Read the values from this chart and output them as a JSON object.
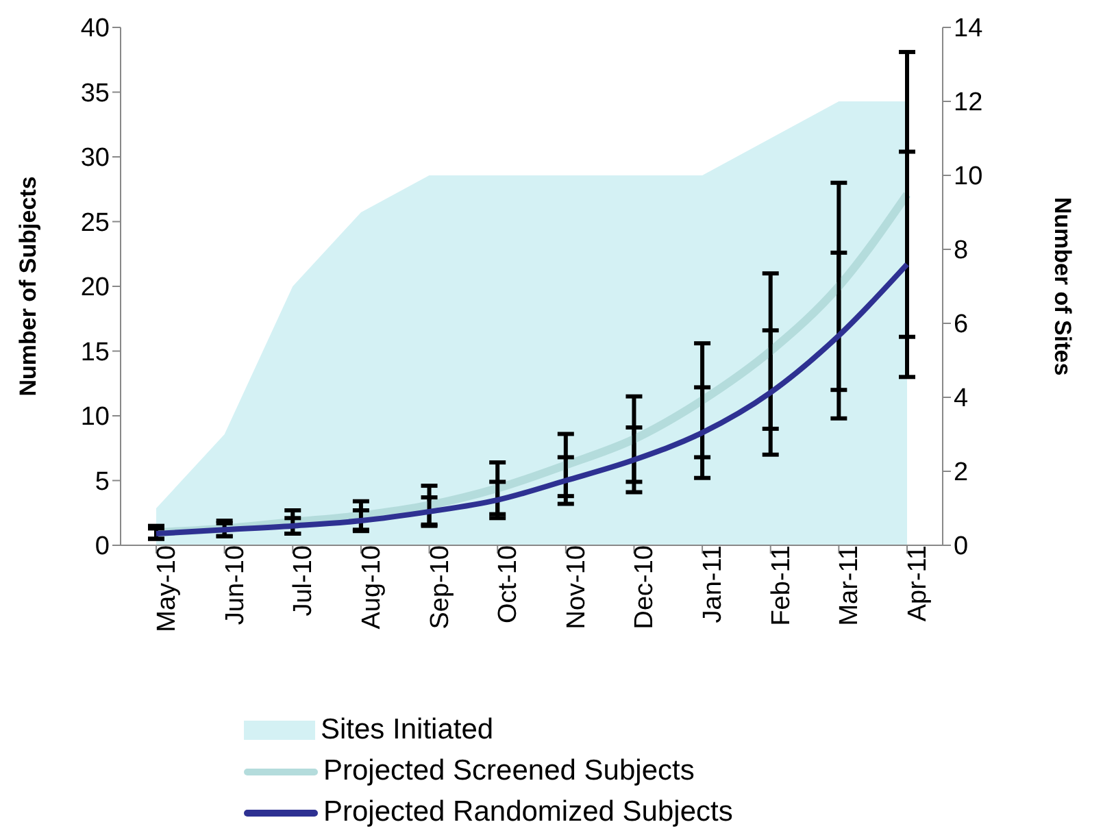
{
  "chart_data": {
    "type": "line",
    "xlabel": null,
    "ylabel": "Number of Subjects",
    "y2label": "Number of Sites",
    "categories": [
      "May-10",
      "Jun-10",
      "Jul-10",
      "Aug-10",
      "Sep-10",
      "Oct-10",
      "Nov-10",
      "Dec-10",
      "Jan-11",
      "Feb-11",
      "Mar-11",
      "Apr-11"
    ],
    "series": [
      {
        "name": "Sites Initiated",
        "type": "area",
        "axis": "y2",
        "color": "#d4f1f4",
        "values": [
          1,
          3,
          7,
          9,
          10,
          10,
          10,
          10,
          10,
          11,
          12,
          12
        ]
      },
      {
        "name": "Projected Screened Subjects",
        "color": "#b4dcdc",
        "values": [
          1,
          1.3,
          1.8,
          2.3,
          3.1,
          4.4,
          6.2,
          8.2,
          11.2,
          15,
          20,
          27.1
        ],
        "errors": [
          0.5,
          0.6,
          0.9,
          1.1,
          1.5,
          2,
          2.4,
          3.3,
          4.4,
          6,
          8,
          11
        ]
      },
      {
        "name": "Projected Randomized Subjects",
        "color": "#2e3192",
        "values": [
          0.9,
          1.2,
          1.5,
          1.9,
          2.6,
          3.5,
          5,
          6.6,
          8.7,
          11.8,
          16.2,
          21.7
        ],
        "errors": [
          0.4,
          0.5,
          0.6,
          0.8,
          1.1,
          1.4,
          1.8,
          2.5,
          3.5,
          4.8,
          6.4,
          8.7
        ]
      }
    ],
    "ylim": [
      0,
      40
    ],
    "yticks": [
      0,
      5,
      10,
      15,
      20,
      25,
      30,
      35,
      40
    ],
    "y2lim": [
      0,
      14
    ],
    "y2ticks": [
      0,
      2,
      4,
      6,
      8,
      10,
      12,
      14
    ],
    "grid": false,
    "legend": "bottom",
    "marker": "none",
    "line_style": "solid"
  }
}
